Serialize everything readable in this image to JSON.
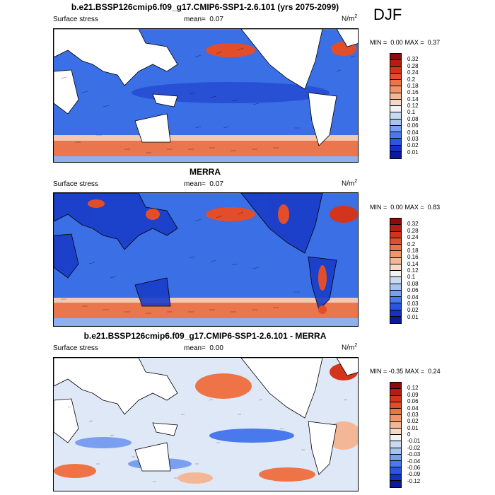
{
  "season": "DJF",
  "panels": [
    {
      "title": "b.e21.BSSP126cmip6.f09_g17.CMIP6-SSP1-2.6.101 (yrs 2075-2099)",
      "variable": "Surface stress",
      "mean_label": "mean=",
      "mean_value": "0.07",
      "units": "N/m",
      "units_sup": "2",
      "min_label": "MIN =",
      "min_value": "0.00",
      "max_label": "MAX =",
      "max_value": "0.37",
      "colorbar_ticks": [
        "0.32",
        "0.28",
        "0.24",
        "0.2",
        "0.18",
        "0.16",
        "0.14",
        "0.12",
        "0.1",
        "0.08",
        "0.06",
        "0.04",
        "0.03",
        "0.02",
        "0.01"
      ],
      "colorbar_colors": [
        "#8c0b0b",
        "#b51d12",
        "#d2351c",
        "#e34e2a",
        "#ee7448",
        "#f2946a",
        "#f3b796",
        "#f5d8c5",
        "#f2f2f2",
        "#c8d9f2",
        "#a6c2ee",
        "#7a9ff0",
        "#4a79ee",
        "#2a55e0",
        "#1431c3",
        "#0a1a99"
      ]
    },
    {
      "title": "MERRA",
      "variable": "Surface stress",
      "mean_label": "mean=",
      "mean_value": "0.07",
      "units": "N/m",
      "units_sup": "2",
      "min_label": "MIN =",
      "min_value": "0.00",
      "max_label": "MAX =",
      "max_value": "0.83",
      "colorbar_ticks": [
        "0.32",
        "0.28",
        "0.24",
        "0.2",
        "0.18",
        "0.16",
        "0.14",
        "0.12",
        "0.1",
        "0.08",
        "0.06",
        "0.04",
        "0.03",
        "0.02",
        "0.01"
      ],
      "colorbar_colors": [
        "#8c0b0b",
        "#b51d12",
        "#d2351c",
        "#e34e2a",
        "#ee7448",
        "#f2946a",
        "#f3b796",
        "#f5d8c5",
        "#f2f2f2",
        "#c8d9f2",
        "#a6c2ee",
        "#7a9ff0",
        "#4a79ee",
        "#2a55e0",
        "#1431c3",
        "#0a1a99"
      ]
    },
    {
      "title": "b.e21.BSSP126cmip6.f09_g17.CMIP6-SSP1-2.6.101 - MERRA",
      "variable": "Surface stress",
      "mean_label": "mean=",
      "mean_value": "0.00",
      "units": "N/m",
      "units_sup": "2",
      "min_label": "MIN =",
      "min_value": "-0.35",
      "max_label": "MAX =",
      "max_value": "0.24",
      "colorbar_ticks": [
        "0.12",
        "0.09",
        "0.06",
        "0.04",
        "0.03",
        "0.02",
        "0.01",
        "0",
        "-0.01",
        "-0.02",
        "-0.03",
        "-0.04",
        "-0.06",
        "-0.09",
        "-0.12"
      ],
      "colorbar_colors": [
        "#8c0b0b",
        "#b51d12",
        "#d2351c",
        "#e34e2a",
        "#ee7448",
        "#f2946a",
        "#f3b796",
        "#f5d8c5",
        "#f2f2f2",
        "#c8d9f2",
        "#a6c2ee",
        "#7a9ff0",
        "#4a79ee",
        "#2a55e0",
        "#1431c3",
        "#0a1a99"
      ]
    }
  ]
}
